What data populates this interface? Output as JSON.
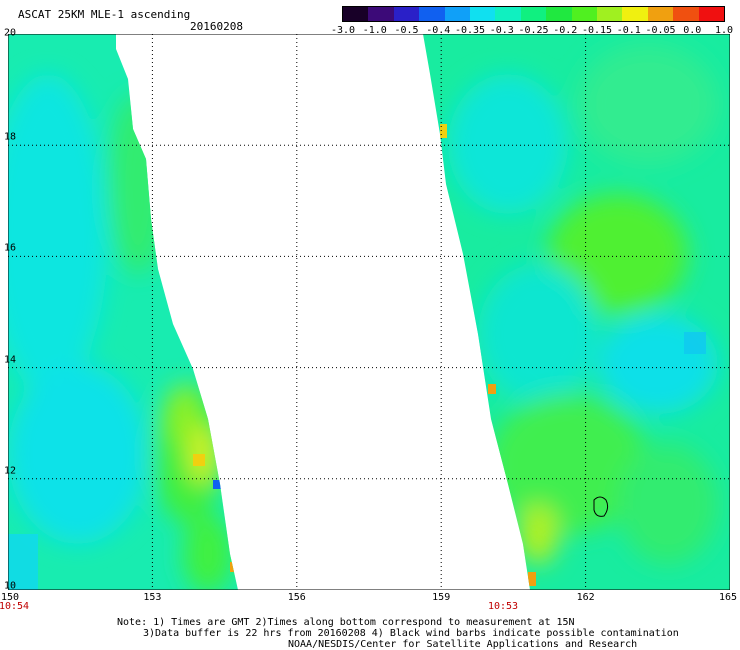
{
  "header": {
    "title": "ASCAT 25KM MLE-1 ascending",
    "date": "20160208"
  },
  "colorbar": {
    "colors": [
      "#180028",
      "#3c0a78",
      "#2a20c8",
      "#1060f0",
      "#10a0f8",
      "#10e0f0",
      "#10f0c0",
      "#10f080",
      "#20e840",
      "#50f020",
      "#a0f020",
      "#f0f010",
      "#f0a010",
      "#f05010",
      "#f01010"
    ],
    "labels": [
      "-3.0",
      "-1.0",
      "-0.5",
      "-0.4",
      "-0.35",
      "-0.3",
      "-0.25",
      "-0.2",
      "-0.15",
      "-0.1",
      "-0.05",
      "0.0",
      "1.0"
    ]
  },
  "map": {
    "lon_range": [
      150,
      165
    ],
    "lat_range": [
      10,
      20
    ],
    "x_ticks": [
      "150",
      "153",
      "156",
      "159",
      "162",
      "165"
    ],
    "y_ticks": [
      "10",
      "12",
      "14",
      "16",
      "18",
      "20"
    ],
    "pass_times": [
      "10:54",
      "10:53"
    ]
  },
  "notes": [
    "Note: 1) Times are GMT 2)Times along bottom correspond to measurement at 15N",
    "3)Data buffer is 22 hrs from 20160208 4) Black wind barbs indicate possible contamination",
    "NOAA/NESDIS/Center for Satellite Applications and Research"
  ]
}
